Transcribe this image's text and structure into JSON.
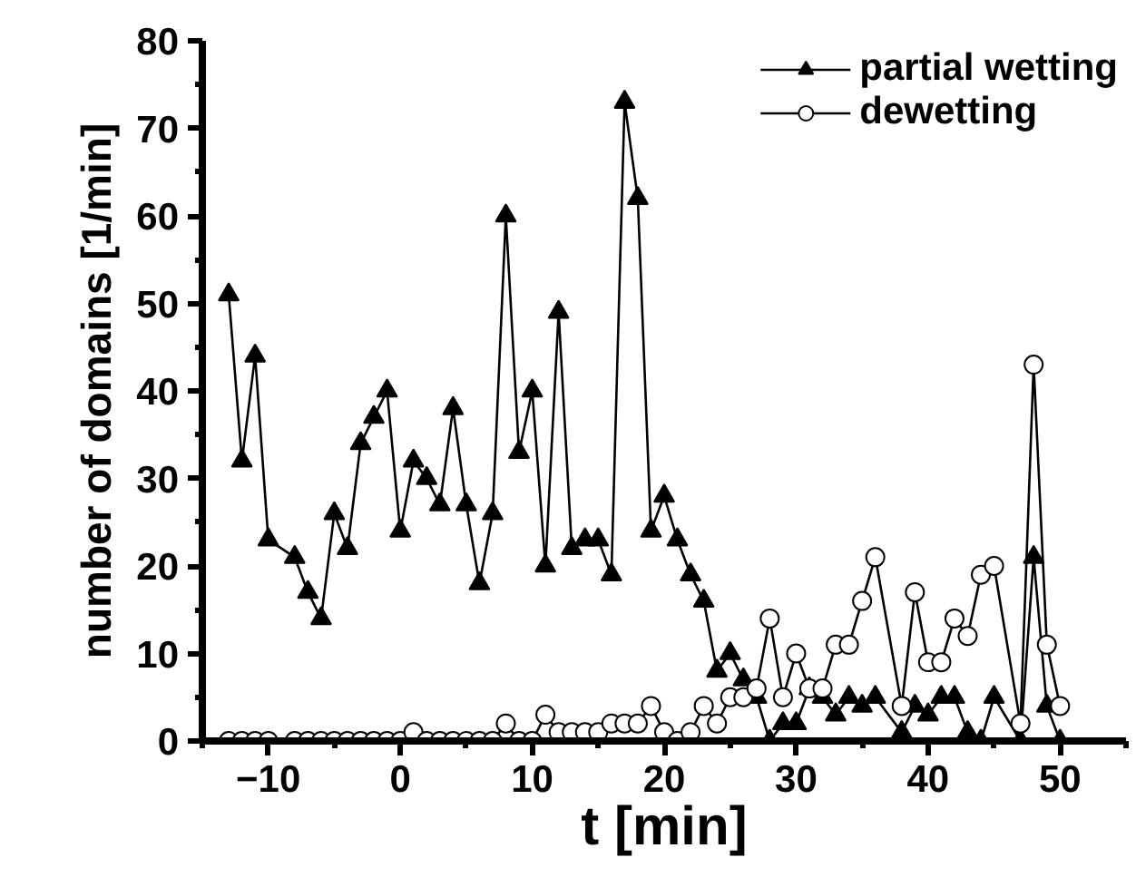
{
  "chart_data": {
    "type": "line",
    "xlabel": "t [min]",
    "ylabel": "number of domains [1/min]",
    "xlim": [
      -15,
      55
    ],
    "xticks": [
      -10,
      0,
      10,
      20,
      30,
      40,
      50
    ],
    "ylim": [
      0,
      80
    ],
    "yticks": [
      0,
      10,
      20,
      30,
      40,
      50,
      60,
      70,
      80
    ],
    "grid": false,
    "legend": "top right",
    "line_style": "solid",
    "series": [
      {
        "name": "partial wetting",
        "color": "#000000",
        "marker": "triangle",
        "x": [
          -13,
          -12,
          -11,
          -10,
          -8,
          -7,
          -6,
          -5,
          -4,
          -3,
          -2,
          -1,
          0,
          1,
          2,
          3,
          4,
          5,
          6,
          7,
          8,
          9,
          10,
          11,
          12,
          13,
          14,
          15,
          16,
          17,
          18,
          19,
          20,
          21,
          22,
          23,
          24,
          25,
          26,
          27,
          28,
          29,
          30,
          31,
          32,
          33,
          34,
          35,
          36,
          38,
          39,
          40,
          41,
          42,
          43,
          44,
          45,
          47,
          48,
          49,
          50
        ],
        "values": [
          51,
          32,
          44,
          23,
          21,
          17,
          14,
          26,
          22,
          34,
          37,
          40,
          24,
          32,
          30,
          27,
          38,
          27,
          18,
          26,
          60,
          33,
          40,
          20,
          49,
          22,
          23,
          23,
          19,
          73,
          62,
          24,
          28,
          23,
          19,
          16,
          8,
          10,
          7,
          5,
          0,
          2,
          2,
          6,
          5,
          3,
          5,
          4,
          5,
          1,
          4,
          3,
          5,
          5,
          1,
          0,
          5,
          0,
          21,
          4,
          0
        ]
      },
      {
        "name": "dewetting",
        "color": "#000000",
        "marker": "circle",
        "x": [
          -13,
          -12,
          -11,
          -10,
          -8,
          -7,
          -6,
          -5,
          -4,
          -3,
          -2,
          -1,
          0,
          1,
          2,
          3,
          4,
          5,
          6,
          7,
          8,
          9,
          10,
          11,
          12,
          13,
          14,
          15,
          16,
          17,
          18,
          19,
          20,
          21,
          22,
          23,
          24,
          25,
          26,
          27,
          28,
          29,
          30,
          31,
          32,
          33,
          34,
          35,
          36,
          38,
          39,
          40,
          41,
          42,
          43,
          44,
          45,
          47,
          48,
          49,
          50
        ],
        "values": [
          0,
          0,
          0,
          0,
          0,
          0,
          0,
          0,
          0,
          0,
          0,
          0,
          0,
          1,
          0,
          0,
          0,
          0,
          0,
          0,
          2,
          0,
          0,
          3,
          1,
          1,
          1,
          1,
          2,
          2,
          2,
          4,
          1,
          0,
          1,
          4,
          2,
          5,
          5,
          6,
          14,
          5,
          10,
          6,
          6,
          11,
          11,
          16,
          21,
          4,
          17,
          9,
          9,
          14,
          12,
          19,
          20,
          2,
          43,
          11,
          4
        ]
      }
    ]
  }
}
